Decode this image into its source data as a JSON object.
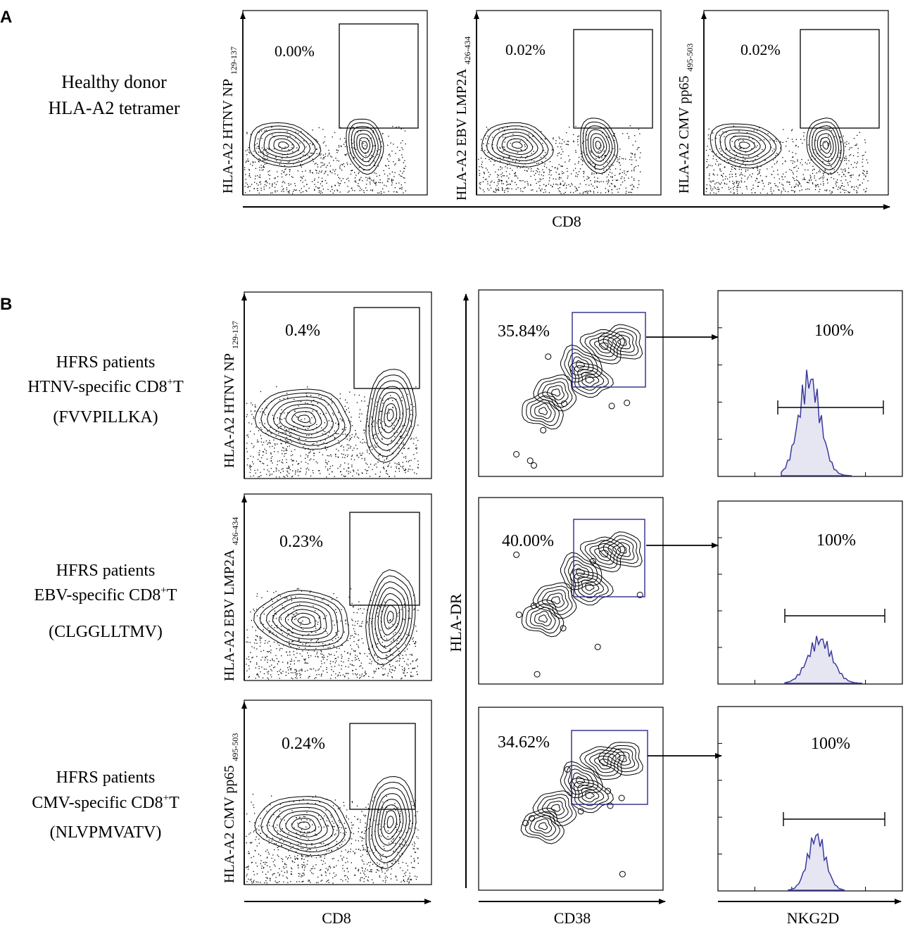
{
  "panel_a": {
    "letter": "A",
    "row_label": [
      "Healthy donor",
      "HLA-A2 tetramer"
    ],
    "x_axis_label": "CD8",
    "plots": [
      {
        "y_main": "HLA-A2 HTNV NP",
        "y_sub": "129-137",
        "percent": "0.00%"
      },
      {
        "y_main": "HLA-A2 EBV LMP2A",
        "y_sub": "426-434",
        "percent": "0.02%"
      },
      {
        "y_main": "HLA-A2 CMV pp65",
        "y_sub": "495-503",
        "percent": "0.02%"
      }
    ]
  },
  "panel_b": {
    "letter": "B",
    "x_label_tetramer": "CD8",
    "x_label_activation": "CD38",
    "y_label_activation": "HLA-DR",
    "x_label_histogram": "NKG2D",
    "rows": [
      {
        "label_line1": "HFRS patients",
        "label_line2_pre": "HTNV-specific CD8",
        "label_line2_sup": "+",
        "label_line2_post": "T",
        "label_line3": "(FVVPILLKA)",
        "y_main": "HLA-A2 HTNV NP",
        "y_sub": "129-137",
        "tetramer_percent": "0.4%",
        "activation_percent": "35.84%",
        "histogram_percent": "100%"
      },
      {
        "label_line1": "HFRS patients",
        "label_line2_pre": "EBV-specific CD8",
        "label_line2_sup": "+",
        "label_line2_post": "T",
        "label_line3": "(CLGGLLTMV)",
        "y_main": "HLA-A2 EBV LMP2A",
        "y_sub": "426-434",
        "tetramer_percent": "0.23%",
        "activation_percent": "40.00%",
        "histogram_percent": "100%"
      },
      {
        "label_line1": "HFRS patients",
        "label_line2_pre": "CMV-specific CD8",
        "label_line2_sup": "+",
        "label_line2_post": "T",
        "label_line3": "(NLVPMVATV)",
        "y_main": "HLA-A2 CMV pp65",
        "y_sub": "495-503",
        "tetramer_percent": "0.24%",
        "activation_percent": "34.62%",
        "histogram_percent": "100%"
      }
    ]
  },
  "colors": {
    "ink": "#000000",
    "gate_activation": "#2a2a8c",
    "histogram_line": "#3a3aa0",
    "histogram_fill": "#e6e6f2"
  }
}
